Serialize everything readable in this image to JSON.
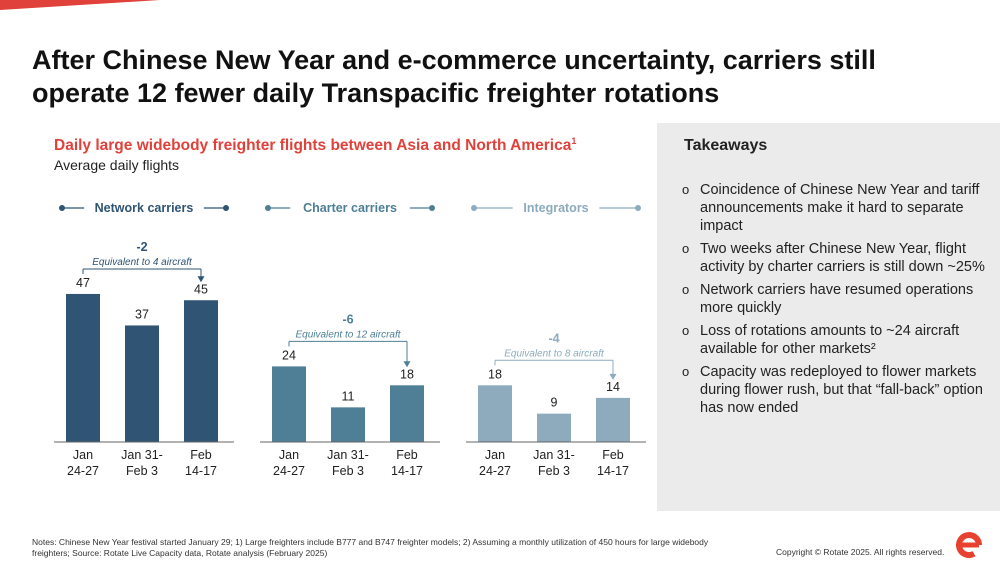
{
  "slide": {
    "title": "After Chinese New Year and e-commerce uncertainty, carriers still operate 12 fewer daily Transpacific freighter rotations",
    "subtitle": "Daily large widebody freighter flights between Asia and North America",
    "subtitle_sup": "1",
    "subnote": "Average daily flights"
  },
  "takeaways": {
    "heading": "Takeaways",
    "bullet_symbol": "o",
    "items": [
      "Coincidence of Chinese New Year and tariff announcements make it hard to separate impact",
      "Two weeks after Chinese New Year, flight activity by charter carriers is still down ~25%",
      "Network carriers have resumed operations more quickly",
      "Loss of rotations amounts to ~24 aircraft available for other markets²",
      "Capacity was redeployed to flower markets during flower rush, but that “fall-back” option has now ended"
    ]
  },
  "footer": {
    "notes": "Notes: Chinese New Year festival started January 29; 1) Large freighters include B777 and B747 freighter models; 2) Assuming a monthly utilization of 450 hours for large widebody freighters; Source: Rotate Live Capacity data, Rotate analysis (February 2025)",
    "copyright": "Copyright © Rotate 2025. All rights reserved."
  },
  "colors": {
    "title_accent": "#e0413a",
    "network": "#2f5474",
    "charter": "#4e7f96",
    "integrators": "#8dabbd",
    "panel": "#ebebeb",
    "logo": "#e8412f"
  },
  "chart_data": {
    "type": "bar",
    "title": "Daily large widebody freighter flights between Asia and North America",
    "ylabel": "Average daily flights",
    "categories": [
      "Jan 24-27",
      "Jan 31- Feb 3",
      "Feb 14-17"
    ],
    "series": [
      {
        "name": "Network carriers",
        "values": [
          47,
          37,
          45
        ],
        "delta": "-2",
        "note": "Equivalent to 4 aircraft"
      },
      {
        "name": "Charter carriers",
        "values": [
          24,
          11,
          18
        ],
        "delta": "-6",
        "note": "Equivalent to 12 aircraft"
      },
      {
        "name": "Integrators",
        "values": [
          18,
          9,
          14
        ],
        "delta": "-4",
        "note": "Equivalent to 8 aircraft"
      }
    ],
    "ylim": [
      0,
      50
    ],
    "grid": false
  }
}
